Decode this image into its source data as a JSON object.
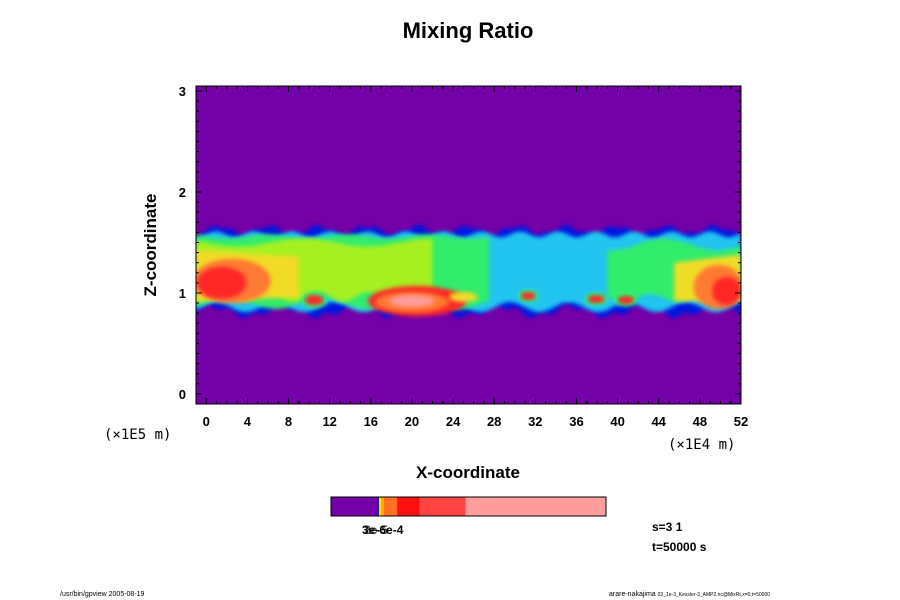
{
  "chart_data": {
    "type": "heatmap",
    "title": "Mixing Ratio",
    "xlabel": "X-coordinate",
    "ylabel": "Z-coordinate",
    "x_unit": "(×1E4 m)",
    "y_unit": "(×1E5 m)",
    "xlim": [
      -1,
      52
    ],
    "ylim": [
      -0.1,
      3.05
    ],
    "x_ticks": [
      "0",
      "4",
      "8",
      "12",
      "16",
      "20",
      "24",
      "28",
      "32",
      "36",
      "40",
      "44",
      "48",
      "52"
    ],
    "y_ticks": [
      "0",
      "1",
      "2",
      "3"
    ],
    "background_color": "#7400a8",
    "band_colors": [
      "#0018e0",
      "#22c4f0",
      "#30ec6c",
      "#a6f020",
      "#f0dc28",
      "#ff7a30",
      "#ff2828",
      "#ff9c9c"
    ],
    "colorbar": {
      "segments": [
        {
          "color": "#7400a8",
          "weight": 46
        },
        {
          "color": "#0000c8",
          "weight": 1
        },
        {
          "color": "#ffe000",
          "weight": 2
        },
        {
          "color": "#ffaa00",
          "weight": 3
        },
        {
          "color": "#ff7020",
          "weight": 13
        },
        {
          "color": "#ff1010",
          "weight": 22
        },
        {
          "color": "#ff4444",
          "weight": 45
        },
        {
          "color": "#ff9c9c",
          "weight": 138
        }
      ],
      "labels_text": "3e-6e-4",
      "labels_overlay": "2e-5"
    },
    "info": {
      "line1": "s=3 1",
      "line2": "t=50000 s"
    }
  },
  "footer": {
    "left": "/usr/bin/gpview 2005-08-19",
    "right_main": "arare-nakajima",
    "right_small": "03_1e-3_Kessler-3_AMP2.nc@MixRt,x=0,t=50000"
  }
}
